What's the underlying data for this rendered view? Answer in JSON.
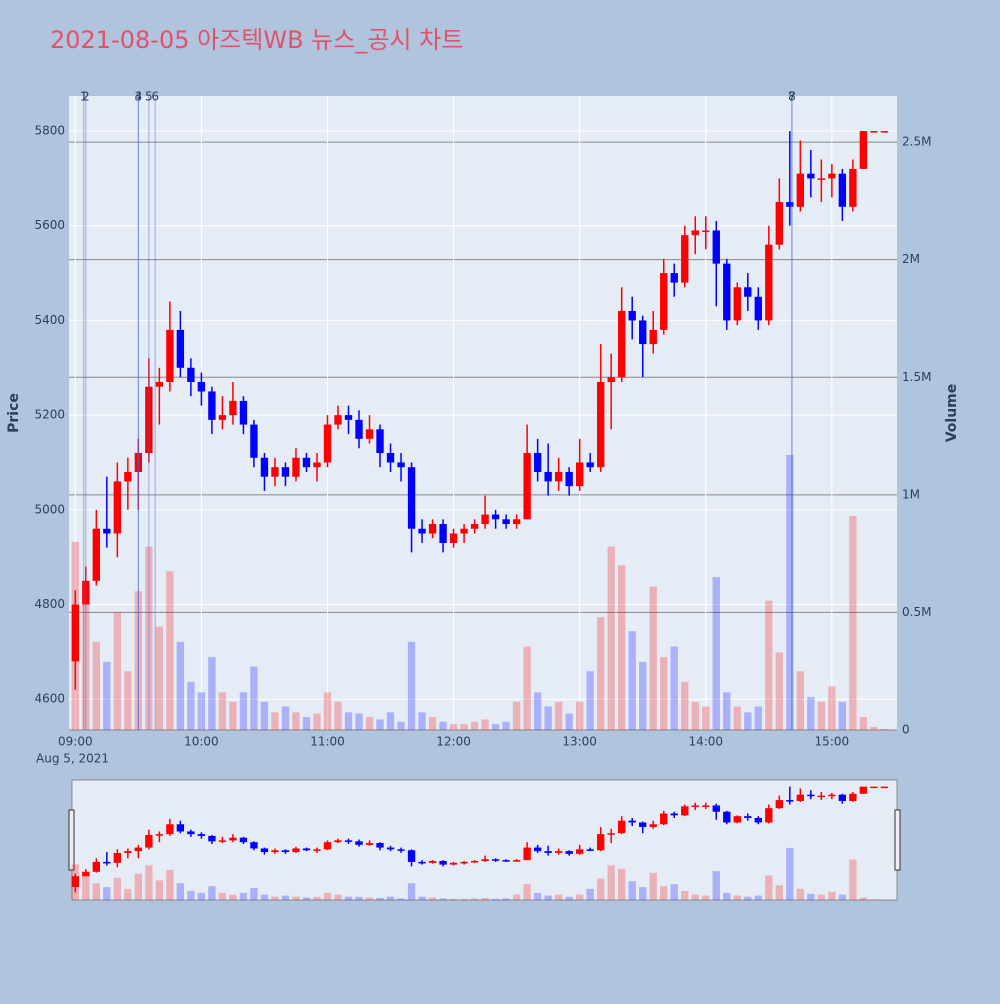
{
  "chart_data": {
    "type": "candlestick",
    "title": "2021-08-05 아즈텍WB 뉴스_공시 차트",
    "y_label": "Price",
    "y2_label": "Volume",
    "date_label": "Aug 5, 2021",
    "up_color": "#ff0000",
    "down_color": "#0000ff",
    "news_color": "#4169e1",
    "grid": true,
    "x": [
      "09:00",
      "09:05",
      "09:10",
      "09:15",
      "09:20",
      "09:25",
      "09:30",
      "09:35",
      "09:40",
      "09:45",
      "09:50",
      "09:55",
      "10:00",
      "10:05",
      "10:10",
      "10:15",
      "10:20",
      "10:25",
      "10:30",
      "10:35",
      "10:40",
      "10:45",
      "10:50",
      "10:55",
      "11:00",
      "11:05",
      "11:10",
      "11:15",
      "11:20",
      "11:25",
      "11:30",
      "11:35",
      "11:40",
      "11:45",
      "11:50",
      "11:55",
      "12:00",
      "12:05",
      "12:10",
      "12:15",
      "12:20",
      "12:25",
      "12:30",
      "12:35",
      "12:40",
      "12:45",
      "12:50",
      "12:55",
      "13:00",
      "13:05",
      "13:10",
      "13:15",
      "13:20",
      "13:25",
      "13:30",
      "13:35",
      "13:40",
      "13:45",
      "13:50",
      "13:55",
      "14:00",
      "14:05",
      "14:10",
      "14:15",
      "14:20",
      "14:25",
      "14:30",
      "14:35",
      "14:40",
      "14:45",
      "14:50",
      "14:55",
      "15:00",
      "15:05",
      "15:10",
      "15:15",
      "15:20",
      "15:25"
    ],
    "open": [
      4680,
      4800,
      4850,
      4960,
      4950,
      5060,
      5080,
      5120,
      5260,
      5270,
      5380,
      5300,
      5270,
      5250,
      5190,
      5200,
      5230,
      5180,
      5110,
      5070,
      5090,
      5070,
      5110,
      5090,
      5100,
      5180,
      5200,
      5190,
      5150,
      5170,
      5120,
      5100,
      5090,
      4960,
      4950,
      4970,
      4930,
      4950,
      4960,
      4970,
      4990,
      4980,
      4970,
      4980,
      5120,
      5080,
      5060,
      5080,
      5050,
      5100,
      5090,
      5270,
      5280,
      5420,
      5400,
      5350,
      5380,
      5500,
      5480,
      5580,
      5590,
      5590,
      5520,
      5400,
      5470,
      5450,
      5400,
      5560,
      5650,
      5640,
      5710,
      5700,
      5700,
      5710,
      5640,
      5720,
      5800,
      5800
    ],
    "high": [
      4830,
      4880,
      5000,
      5070,
      5100,
      5110,
      5150,
      5320,
      5300,
      5440,
      5420,
      5320,
      5290,
      5260,
      5240,
      5270,
      5240,
      5190,
      5120,
      5110,
      5100,
      5130,
      5120,
      5120,
      5200,
      5220,
      5220,
      5210,
      5200,
      5180,
      5140,
      5120,
      5100,
      4980,
      4980,
      4980,
      4960,
      4970,
      4980,
      5030,
      5000,
      4990,
      4990,
      5180,
      5150,
      5140,
      5110,
      5090,
      5150,
      5120,
      5350,
      5330,
      5470,
      5450,
      5410,
      5420,
      5530,
      5520,
      5600,
      5620,
      5620,
      5610,
      5530,
      5480,
      5500,
      5470,
      5600,
      5700,
      5800,
      5780,
      5760,
      5740,
      5730,
      5720,
      5740,
      5800,
      5800,
      5800
    ],
    "low": [
      4620,
      4800,
      4840,
      4920,
      4900,
      5000,
      5000,
      5100,
      5180,
      5250,
      5280,
      5240,
      5220,
      5160,
      5170,
      5180,
      5160,
      5090,
      5040,
      5050,
      5050,
      5060,
      5080,
      5060,
      5090,
      5170,
      5160,
      5130,
      5140,
      5090,
      5080,
      5060,
      4910,
      4930,
      4940,
      4910,
      4920,
      4930,
      4950,
      4960,
      4960,
      4960,
      4960,
      4980,
      5060,
      5030,
      5040,
      5030,
      5040,
      5080,
      5080,
      5170,
      5270,
      5360,
      5280,
      5330,
      5370,
      5450,
      5470,
      5540,
      5550,
      5430,
      5380,
      5390,
      5420,
      5380,
      5390,
      5550,
      5600,
      5630,
      5660,
      5650,
      5660,
      5610,
      5630,
      5720,
      5800,
      5800
    ],
    "close": [
      4800,
      4850,
      4960,
      4950,
      5060,
      5080,
      5120,
      5260,
      5270,
      5380,
      5300,
      5270,
      5250,
      5190,
      5200,
      5230,
      5180,
      5110,
      5070,
      5090,
      5070,
      5110,
      5090,
      5100,
      5180,
      5200,
      5190,
      5150,
      5170,
      5120,
      5100,
      5090,
      4960,
      4950,
      4970,
      4930,
      4950,
      4960,
      4970,
      4990,
      4980,
      4970,
      4980,
      5120,
      5080,
      5060,
      5080,
      5050,
      5100,
      5090,
      5270,
      5280,
      5420,
      5400,
      5350,
      5380,
      5500,
      5480,
      5580,
      5590,
      5590,
      5520,
      5400,
      5470,
      5450,
      5400,
      5560,
      5650,
      5640,
      5710,
      5700,
      5700,
      5710,
      5640,
      5720,
      5800,
      5800,
      5800
    ],
    "volume": [
      800000,
      550000,
      375000,
      290000,
      500000,
      250000,
      590000,
      780000,
      440000,
      675000,
      375000,
      205000,
      160000,
      310000,
      160000,
      120000,
      160000,
      270000,
      120000,
      75000,
      100000,
      75000,
      55000,
      70000,
      160000,
      120000,
      75000,
      70000,
      55000,
      45000,
      75000,
      35000,
      375000,
      75000,
      55000,
      35000,
      25000,
      25000,
      35000,
      45000,
      25000,
      35000,
      120000,
      355000,
      160000,
      100000,
      120000,
      70000,
      120000,
      250000,
      480000,
      780000,
      700000,
      420000,
      290000,
      610000,
      310000,
      355000,
      205000,
      120000,
      100000,
      650000,
      160000,
      100000,
      75000,
      100000,
      550000,
      330000,
      1170000,
      250000,
      140000,
      120000,
      185000,
      120000,
      910000,
      55000,
      13000,
      4000
    ],
    "xlim": [
      "08:57",
      "15:31"
    ],
    "xticks": [
      "09:00",
      "10:00",
      "11:00",
      "12:00",
      "13:00",
      "14:00",
      "15:00"
    ],
    "ylim": [
      4535,
      5874
    ],
    "yticks": [
      4600,
      4800,
      5000,
      5200,
      5400,
      5600,
      5800
    ],
    "y2lim": [
      0,
      2696000
    ],
    "y2ticks": [
      0,
      {
        "value": 500000,
        "label": "0.5M"
      },
      {
        "value": 1000000,
        "label": "1M"
      },
      {
        "value": 1500000,
        "label": "1.5M"
      },
      {
        "value": 2000000,
        "label": "2M"
      },
      {
        "value": 2500000,
        "label": "2.5M"
      }
    ],
    "news": [
      {
        "label": "1",
        "time": "09:04"
      },
      {
        "label": "2",
        "time": "09:05"
      },
      {
        "label": "3",
        "time": "09:30"
      },
      {
        "label": "4",
        "time": "09:30"
      },
      {
        "label": "5",
        "time": "09:35"
      },
      {
        "label": "6",
        "time": "09:38"
      },
      {
        "label": "7",
        "time": "14:41"
      },
      {
        "label": "8",
        "time": "14:41"
      }
    ]
  }
}
